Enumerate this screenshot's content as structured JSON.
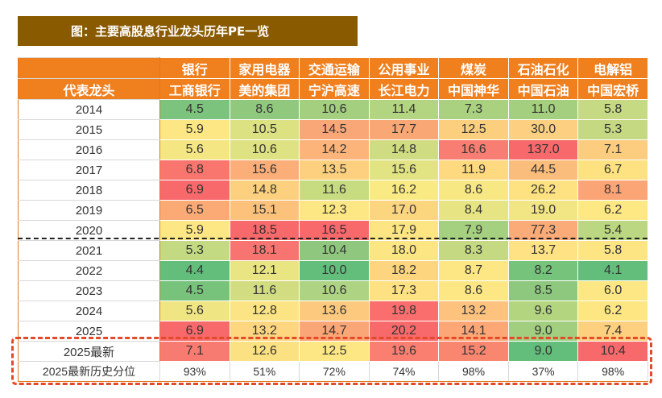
{
  "title": "图：主要高股息行业龙头历年PE一览",
  "chart_data": {
    "type": "table",
    "industry_row": [
      "",
      "银行",
      "家用电器",
      "交通运输",
      "公用事业",
      "煤炭",
      "石油石化",
      "电解铝"
    ],
    "leader_label": "代表龙头",
    "leaders": [
      "工商银行",
      "美的集团",
      "宁沪高速",
      "长江电力",
      "中国神华",
      "中国石油",
      "中国宏桥"
    ],
    "rows": [
      {
        "label": "2014",
        "values": [
          "4.5",
          "8.6",
          "10.6",
          "11.4",
          "7.3",
          "11.0",
          "5.8"
        ],
        "colors": [
          "#7cc37d",
          "#90c97e",
          "#a3cf7f",
          "#b3d480",
          "#a9d17f",
          "#a3cf7f",
          "#c5da82"
        ]
      },
      {
        "label": "2015",
        "values": [
          "5.9",
          "10.5",
          "14.5",
          "17.7",
          "12.5",
          "30.0",
          "5.3"
        ],
        "colors": [
          "#fde784",
          "#dce181",
          "#faa777",
          "#f9a775",
          "#fccf7f",
          "#fcd080",
          "#c4d982"
        ]
      },
      {
        "label": "2016",
        "values": [
          "5.6",
          "10.6",
          "14.2",
          "14.8",
          "16.6",
          "137.0",
          "7.1"
        ],
        "colors": [
          "#f5e684",
          "#dfe282",
          "#fcb47a",
          "#d0dc82",
          "#f87e73",
          "#f8696b",
          "#fccd7e"
        ]
      },
      {
        "label": "2017",
        "values": [
          "6.8",
          "15.6",
          "13.5",
          "15.6",
          "11.9",
          "44.5",
          "6.7"
        ],
        "colors": [
          "#f9766f",
          "#fbae78",
          "#fdd07f",
          "#e2e383",
          "#fed97f",
          "#fbbd7b",
          "#fee282"
        ]
      },
      {
        "label": "2018",
        "values": [
          "6.9",
          "14.8",
          "11.6",
          "16.2",
          "8.6",
          "26.2",
          "8.1"
        ],
        "colors": [
          "#f8696b",
          "#fcd07f",
          "#c7db81",
          "#f9ea84",
          "#f7e883",
          "#fee282",
          "#fba476"
        ]
      },
      {
        "label": "2019",
        "values": [
          "6.5",
          "15.1",
          "12.3",
          "17.0",
          "8.4",
          "19.0",
          "6.2"
        ],
        "colors": [
          "#fbaa76",
          "#fcc27c",
          "#fde784",
          "#fcd57f",
          "#e6e483",
          "#f1e683",
          "#fee883"
        ]
      },
      {
        "label": "2020",
        "values": [
          "5.9",
          "18.5",
          "16.5",
          "17.9",
          "7.9",
          "77.3",
          "5.4"
        ],
        "colors": [
          "#fde784",
          "#f8696b",
          "#f8696b",
          "#fce582",
          "#a5d07f",
          "#fbab77",
          "#bcd781"
        ]
      },
      {
        "label": "2021",
        "values": [
          "5.3",
          "18.1",
          "10.4",
          "18.0",
          "8.3",
          "13.7",
          "5.8"
        ],
        "colors": [
          "#c3d982",
          "#f87471",
          "#8ec77d",
          "#fce583",
          "#c4d982",
          "#fee283",
          "#fde584"
        ]
      },
      {
        "label": "2022",
        "values": [
          "4.4",
          "12.1",
          "10.0",
          "18.2",
          "8.7",
          "8.2",
          "4.1"
        ],
        "colors": [
          "#63be7b",
          "#eae583",
          "#63be7b",
          "#fed57f",
          "#fde784",
          "#76c37c",
          "#63be7b"
        ]
      },
      {
        "label": "2023",
        "values": [
          "4.5",
          "11.6",
          "10.6",
          "17.3",
          "8.6",
          "8.5",
          "6.0"
        ],
        "colors": [
          "#78c37c",
          "#d2dd82",
          "#aed382",
          "#fde182",
          "#fce784",
          "#8ec87e",
          "#fde784"
        ]
      },
      {
        "label": "2024",
        "values": [
          "5.6",
          "12.8",
          "13.6",
          "19.8",
          "13.2",
          "9.6",
          "6.2"
        ],
        "colors": [
          "#f0e583",
          "#fce484",
          "#fdc97e",
          "#fa6e6e",
          "#fdc27d",
          "#b4d580",
          "#fee783"
        ]
      },
      {
        "label": "2025",
        "values": [
          "6.9",
          "13.2",
          "14.7",
          "20.2",
          "14.1",
          "9.0",
          "7.4"
        ],
        "colors": [
          "#f8696b",
          "#fed680",
          "#fba677",
          "#f8696b",
          "#fda777",
          "#a1ce7f",
          "#fcd07f"
        ]
      },
      {
        "label": "2025最新",
        "values": [
          "7.1",
          "12.6",
          "12.5",
          "19.6",
          "15.2",
          "9.0",
          "10.4"
        ],
        "colors": [
          "#f87b71",
          "#fce182",
          "#fde784",
          "#fb7f71",
          "#f9866f",
          "#63be7b",
          "#f8696b"
        ]
      }
    ],
    "percentile_row": {
      "label": "2025最新历史分位",
      "values": [
        "93%",
        "51%",
        "72%",
        "74%",
        "98%",
        "37%",
        "98%"
      ]
    }
  }
}
